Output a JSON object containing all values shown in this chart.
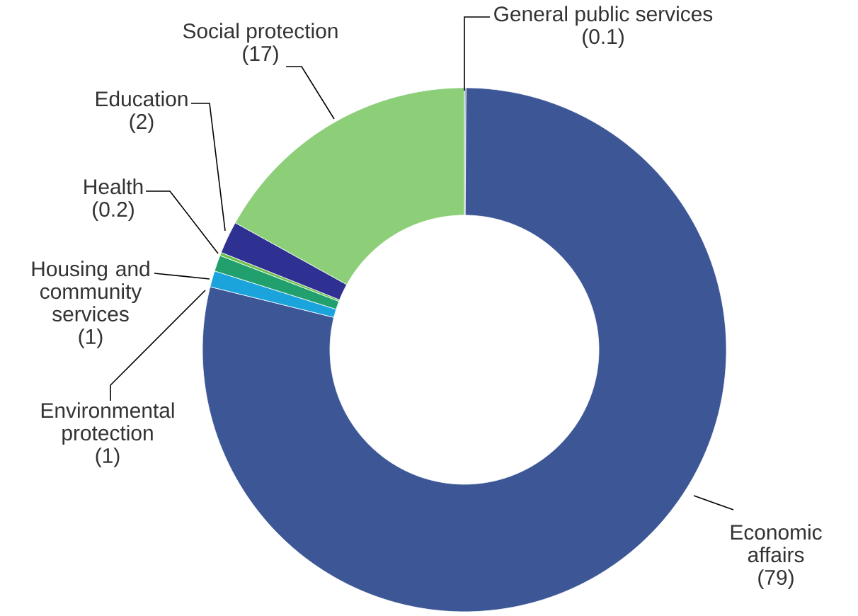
{
  "chart_data": {
    "type": "donut",
    "categories": [
      "General public services",
      "Economic affairs",
      "Environmental protection",
      "Housing and community services",
      "Health",
      "Education",
      "Social protection"
    ],
    "values": [
      0.1,
      79,
      1,
      1,
      0.2,
      2,
      17
    ],
    "value_labels": [
      "(0.1)",
      "(79)",
      "(1)",
      "(1)",
      "(0.2)",
      "(2)",
      "(17)"
    ],
    "colors": [
      "#7f93c4",
      "#3d5696",
      "#1ba3dc",
      "#21a06e",
      "#6cc04a",
      "#2e3192",
      "#8ccf78"
    ]
  }
}
